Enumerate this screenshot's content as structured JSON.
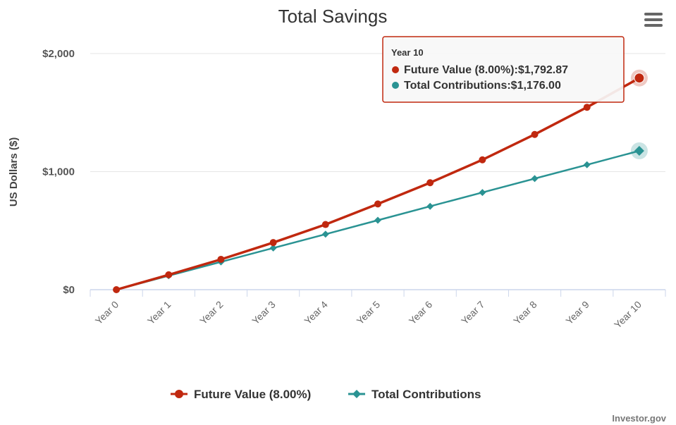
{
  "chart_data": {
    "type": "line",
    "title": "Total Savings",
    "ylabel": "US Dollars ($)",
    "xlabel": "",
    "categories": [
      "Year 0",
      "Year 1",
      "Year 2",
      "Year 3",
      "Year 4",
      "Year 5",
      "Year 6",
      "Year 7",
      "Year 8",
      "Year 9",
      "Year 10"
    ],
    "ylim": [
      0,
      2000
    ],
    "yticks": [
      {
        "value": 0,
        "label": "$0"
      },
      {
        "value": 1000,
        "label": "$1,000"
      },
      {
        "value": 2000,
        "label": "$2,000"
      }
    ],
    "grid": true,
    "legend_position": "bottom",
    "series": [
      {
        "name": "Future Value (8.00%)",
        "color": "#c0280f",
        "marker": "circle",
        "values": [
          0,
          126,
          257,
          399,
          552,
          726,
          906,
          1100,
          1315,
          1545,
          1792.87
        ]
      },
      {
        "name": "Total Contributions",
        "color": "#2a9393",
        "marker": "diamond",
        "values": [
          0,
          118,
          235,
          353,
          470,
          588,
          706,
          823,
          941,
          1058,
          1176
        ]
      }
    ],
    "tooltip": {
      "header": "Year 10",
      "lines": [
        {
          "label": "Future Value (8.00%)",
          "value": "$1,792.87",
          "color": "#c0280f"
        },
        {
          "label": "Total Contributions",
          "value": "$1,176.00",
          "color": "#2a9393"
        }
      ]
    },
    "credit": "Investor.gov"
  },
  "ui": {
    "menu_icon": "hamburger-menu-icon"
  }
}
